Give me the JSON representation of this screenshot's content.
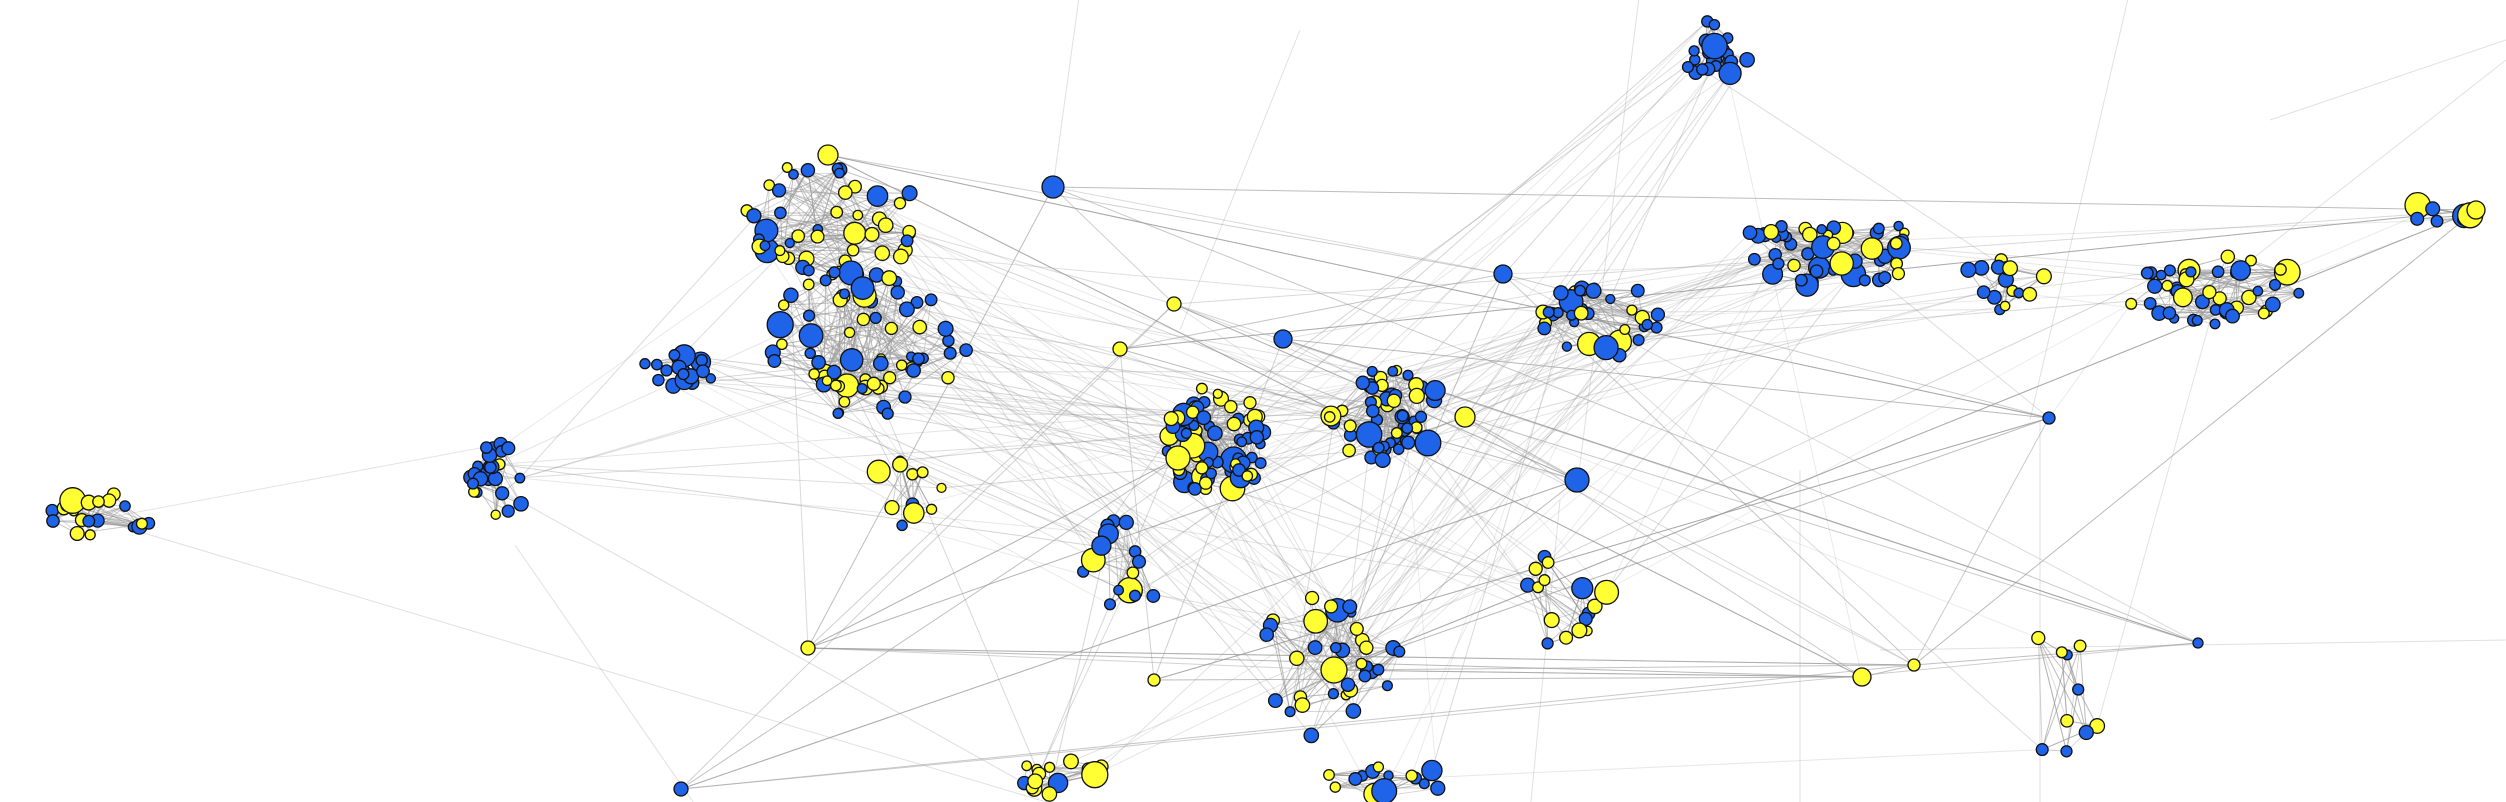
{
  "figure": {
    "kind": "network graph",
    "background": "#ffffff",
    "edge_color": "#9a9a9a",
    "node_outline": "#111111",
    "legend": "none",
    "title": ""
  },
  "node_categories": [
    {
      "id": "blue",
      "color": "#1f63e8"
    },
    {
      "id": "yellow",
      "color": "#ffff33"
    }
  ]
}
